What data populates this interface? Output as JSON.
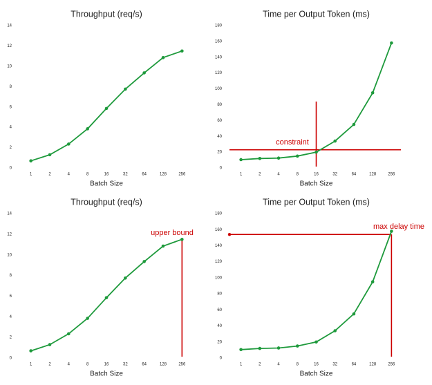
{
  "chart_data": [
    {
      "type": "line",
      "title": "Throughput (req/s)",
      "xlabel": "Batch Size",
      "categories": [
        "1",
        "2",
        "4",
        "8",
        "16",
        "32",
        "64",
        "128",
        "256"
      ],
      "values": [
        0.7,
        1.3,
        2.35,
        3.85,
        5.85,
        7.75,
        9.35,
        10.85,
        11.5
      ],
      "color": "#1e9a3c",
      "ylim": [
        0,
        14
      ],
      "yticks": [
        0,
        2,
        4,
        6,
        8,
        10,
        12,
        14
      ]
    },
    {
      "type": "line",
      "title": "Time per Output Token (ms)",
      "xlabel": "Batch Size",
      "categories": [
        "1",
        "2",
        "4",
        "8",
        "16",
        "32",
        "64",
        "128",
        "256"
      ],
      "values": [
        10.5,
        12,
        12.5,
        15,
        20,
        34,
        55,
        95,
        158
      ],
      "color": "#1e9a3c",
      "ylim": [
        0,
        180
      ],
      "yticks": [
        0,
        20,
        40,
        60,
        80,
        100,
        120,
        140,
        160,
        180
      ],
      "annotation": "constraint",
      "annotation_color": "#cc0000",
      "reference_lines": [
        {
          "orientation": "h",
          "value": 23
        },
        {
          "orientation": "v",
          "x": "16",
          "top": 84
        }
      ]
    },
    {
      "type": "line",
      "title": "Throughput (req/s)",
      "xlabel": "Batch Size",
      "categories": [
        "1",
        "2",
        "4",
        "8",
        "16",
        "32",
        "64",
        "128",
        "256"
      ],
      "values": [
        0.7,
        1.3,
        2.35,
        3.85,
        5.85,
        7.75,
        9.35,
        10.85,
        11.5
      ],
      "color": "#1e9a3c",
      "ylim": [
        0,
        14
      ],
      "yticks": [
        0,
        2,
        4,
        6,
        8,
        10,
        12,
        14
      ],
      "annotation": "upper bound",
      "annotation_color": "#cc0000",
      "reference_lines": [
        {
          "orientation": "v",
          "x": "256",
          "top": 11.5
        }
      ]
    },
    {
      "type": "line",
      "title": "Time per Output Token (ms)",
      "xlabel": "Batch Size",
      "categories": [
        "1",
        "2",
        "4",
        "8",
        "16",
        "32",
        "64",
        "128",
        "256"
      ],
      "values": [
        10.5,
        12,
        12.5,
        15,
        20,
        34,
        55,
        95,
        158
      ],
      "color": "#1e9a3c",
      "ylim": [
        0,
        180
      ],
      "yticks": [
        0,
        20,
        40,
        60,
        80,
        100,
        120,
        140,
        160,
        180
      ],
      "annotation": "max delay time",
      "annotation_color": "#cc0000",
      "reference_lines": [
        {
          "orientation": "h",
          "value": 154
        },
        {
          "orientation": "v",
          "x": "256",
          "top": 154
        }
      ]
    }
  ]
}
